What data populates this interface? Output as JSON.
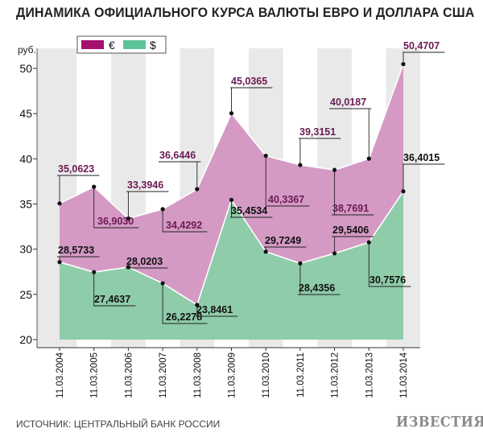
{
  "title": "ДИНАМИКА ОФИЦИАЛЬНОГО КУРСА ВАЛЮТЫ ЕВРО И ДОЛЛАРА США",
  "source": "ИСТОЧНИК: ЦЕНТРАЛЬНЫЙ БАНК РОССИИ",
  "logo_text": "ИЗВЕСТИЯ",
  "chart_data": {
    "type": "area",
    "ylabel": "руб.",
    "xlabel": "",
    "ylim": [
      20,
      50
    ],
    "yticks": [
      "20",
      "25",
      "30",
      "35",
      "40",
      "45",
      "50"
    ],
    "categories": [
      "11.03.2004",
      "11.03.2005",
      "11.03.2006",
      "11.03.2007",
      "11.03.2008",
      "11.03.2009",
      "11.03.2010",
      "11.03.2011",
      "11.03.2012",
      "11.03.2013",
      "11.03.2014"
    ],
    "legend_position": "top-left",
    "series": [
      {
        "name": "€",
        "color": "#d49ac4",
        "legend_color": "#a3106e",
        "label_color": "#6b1a52",
        "values": [
          35.0623,
          36.903,
          33.3946,
          34.4292,
          36.6446,
          45.0365,
          40.3367,
          39.3151,
          38.7691,
          40.0187,
          50.4707
        ],
        "labels": [
          "35,0623",
          "36,9030",
          "33,3946",
          "34,4292",
          "36,6446",
          "45,0365",
          "40,3367",
          "39,3151",
          "38,7691",
          "40,0187",
          "50,4707"
        ]
      },
      {
        "name": "$",
        "color": "#8fcca9",
        "legend_color": "#5fc39a",
        "label_color": "#111111",
        "values": [
          28.5733,
          27.4637,
          28.0203,
          26.2278,
          23.8461,
          35.4534,
          29.7249,
          28.4356,
          29.5406,
          30.7576,
          36.4015
        ],
        "labels": [
          "28,5733",
          "27,4637",
          "28,0203",
          "26,2278",
          "23,8461",
          "35,4534",
          "29,7249",
          "28,4356",
          "29,5406",
          "30,7576",
          "36,4015"
        ]
      }
    ]
  }
}
